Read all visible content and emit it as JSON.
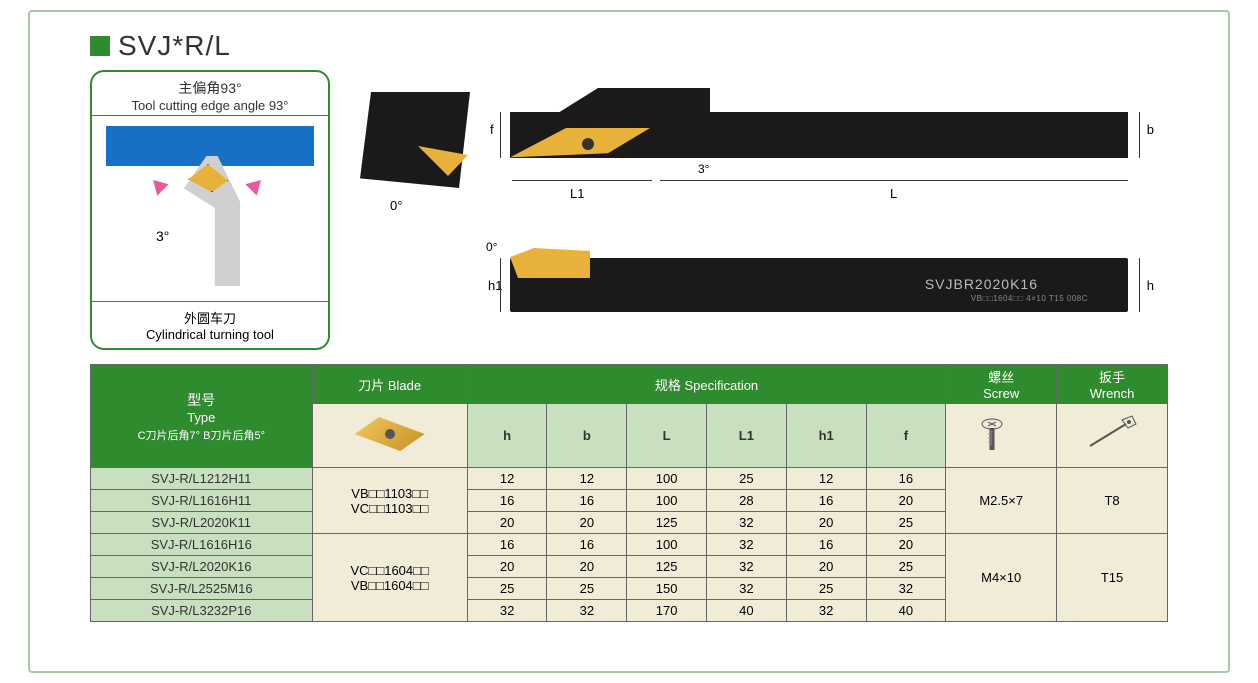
{
  "title": "SVJ*R/L",
  "left_panel": {
    "top_cn": "主偏角93°",
    "top_en": "Tool cutting edge angle 93°",
    "angle_label": "3°",
    "bottom_cn": "外圆车刀",
    "bottom_en": "Cylindrical turning tool"
  },
  "diagram_labels": {
    "front_zero": "0°",
    "top_three": "3°",
    "side_zero": "0°",
    "f": "f",
    "b": "b",
    "L": "L",
    "L1": "L1",
    "h": "h",
    "h1": "h1",
    "holder_mark": "SVJBR2020K16",
    "holder_sub": "VB□□1604□□  4×10  T15   008C"
  },
  "headers": {
    "type_cn": "型号",
    "type_en": "Type",
    "type_sub": "C刀片后角7°  B刀片后角5°",
    "blade_cn": "刀片",
    "blade_en": "Blade",
    "spec_cn": "规格",
    "spec_en": "Specification",
    "screw_cn": "螺丝",
    "screw_en": "Screw",
    "wrench_cn": "扳手",
    "wrench_en": "Wrench"
  },
  "spec_cols": [
    "h",
    "b",
    "L",
    "L1",
    "h1",
    "f"
  ],
  "groups": [
    {
      "blade_lines": [
        "VB□□1103□□",
        "VC□□1103□□"
      ],
      "screw": "M2.5×7",
      "wrench": "T8",
      "rows": [
        {
          "type": "SVJ-R/L1212H11",
          "h": "12",
          "b": "12",
          "L": "100",
          "L1": "25",
          "h1": "12",
          "f": "16"
        },
        {
          "type": "SVJ-R/L1616H11",
          "h": "16",
          "b": "16",
          "L": "100",
          "L1": "28",
          "h1": "16",
          "f": "20"
        },
        {
          "type": "SVJ-R/L2020K11",
          "h": "20",
          "b": "20",
          "L": "125",
          "L1": "32",
          "h1": "20",
          "f": "25"
        }
      ]
    },
    {
      "blade_lines": [
        "VC□□1604□□",
        "VB□□1604□□"
      ],
      "screw": "M4×10",
      "wrench": "T15",
      "rows": [
        {
          "type": "SVJ-R/L1616H16",
          "h": "16",
          "b": "16",
          "L": "100",
          "L1": "32",
          "h1": "16",
          "f": "20"
        },
        {
          "type": "SVJ-R/L2020K16",
          "h": "20",
          "b": "20",
          "L": "125",
          "L1": "32",
          "h1": "20",
          "f": "25"
        },
        {
          "type": "SVJ-R/L2525M16",
          "h": "25",
          "b": "25",
          "L": "150",
          "L1": "32",
          "h1": "25",
          "f": "32"
        },
        {
          "type": "SVJ-R/L3232P16",
          "h": "32",
          "b": "32",
          "L": "170",
          "L1": "40",
          "h1": "32",
          "f": "40"
        }
      ]
    }
  ],
  "colors": {
    "brand_green": "#2e8b2e",
    "light_green": "#c8e0c0",
    "beige": "#f0ecd8",
    "tool_black": "#1a1a1a",
    "insert_gold": "#e8b23a",
    "blue": "#1770c4",
    "border": "#666666"
  }
}
